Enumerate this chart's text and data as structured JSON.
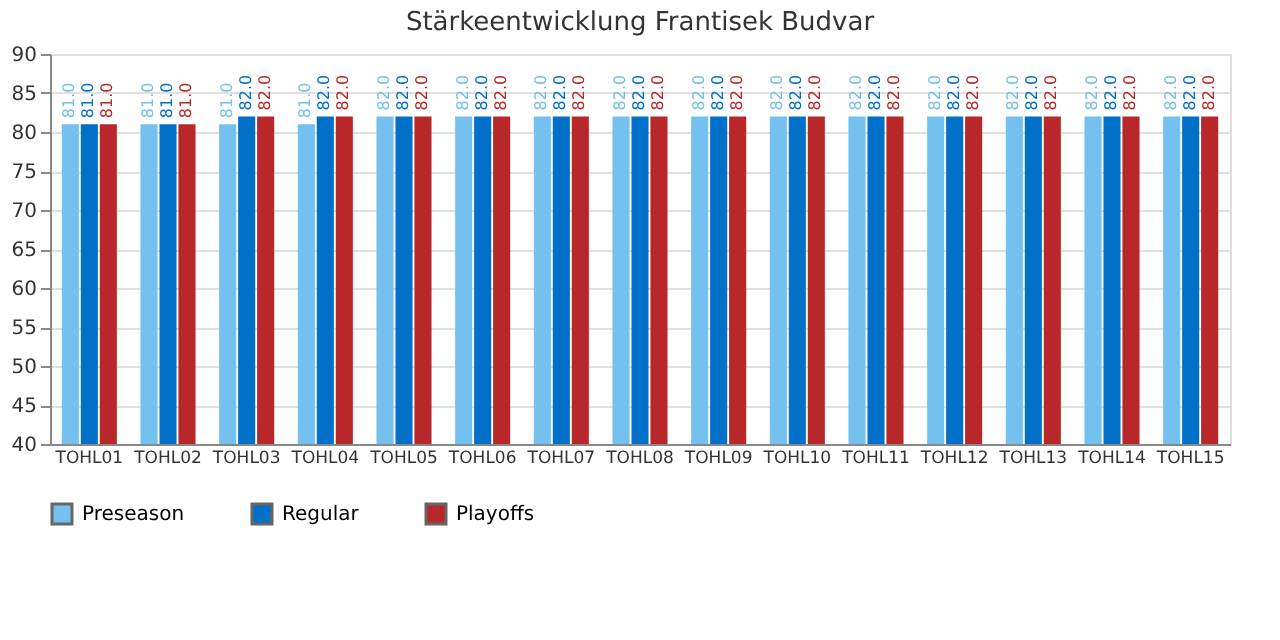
{
  "chart_data": {
    "type": "bar",
    "title": "Stärkeentwicklung Frantisek Budvar",
    "categories": [
      "TOHL01",
      "TOHL02",
      "TOHL03",
      "TOHL04",
      "TOHL05",
      "TOHL06",
      "TOHL07",
      "TOHL08",
      "TOHL09",
      "TOHL10",
      "TOHL11",
      "TOHL12",
      "TOHL13",
      "TOHL14",
      "TOHL15"
    ],
    "series": [
      {
        "name": "Preseason",
        "color": "#74c0ee",
        "values": [
          81,
          81,
          81,
          81,
          82,
          82,
          82,
          82,
          82,
          82,
          82,
          82,
          82,
          82,
          82
        ],
        "value_labels": [
          "81.0",
          "81.0",
          "81.0",
          "81.0",
          "82.0",
          "82.0",
          "82.0",
          "82.0",
          "82.0",
          "82.0",
          "82.0",
          "82.0",
          "82.0",
          "82.0",
          "82.0"
        ]
      },
      {
        "name": "Regular",
        "color": "#0070c8",
        "values": [
          81,
          81,
          82,
          82,
          82,
          82,
          82,
          82,
          82,
          82,
          82,
          82,
          82,
          82,
          82
        ],
        "value_labels": [
          "81.0",
          "81.0",
          "82.0",
          "82.0",
          "82.0",
          "82.0",
          "82.0",
          "82.0",
          "82.0",
          "82.0",
          "82.0",
          "82.0",
          "82.0",
          "82.0",
          "82.0"
        ]
      },
      {
        "name": "Playoffs",
        "color": "#b8282a",
        "values": [
          81,
          81,
          82,
          82,
          82,
          82,
          82,
          82,
          82,
          82,
          82,
          82,
          82,
          82,
          82
        ],
        "value_labels": [
          "81.0",
          "81.0",
          "82.0",
          "82.0",
          "82.0",
          "82.0",
          "82.0",
          "82.0",
          "82.0",
          "82.0",
          "82.0",
          "82.0",
          "82.0",
          "82.0",
          "82.0"
        ]
      }
    ],
    "ylim": [
      40,
      90
    ],
    "yticks": [
      40,
      45,
      50,
      55,
      60,
      65,
      70,
      75,
      80,
      85,
      90
    ],
    "grid": "y",
    "legend": "bottom"
  }
}
